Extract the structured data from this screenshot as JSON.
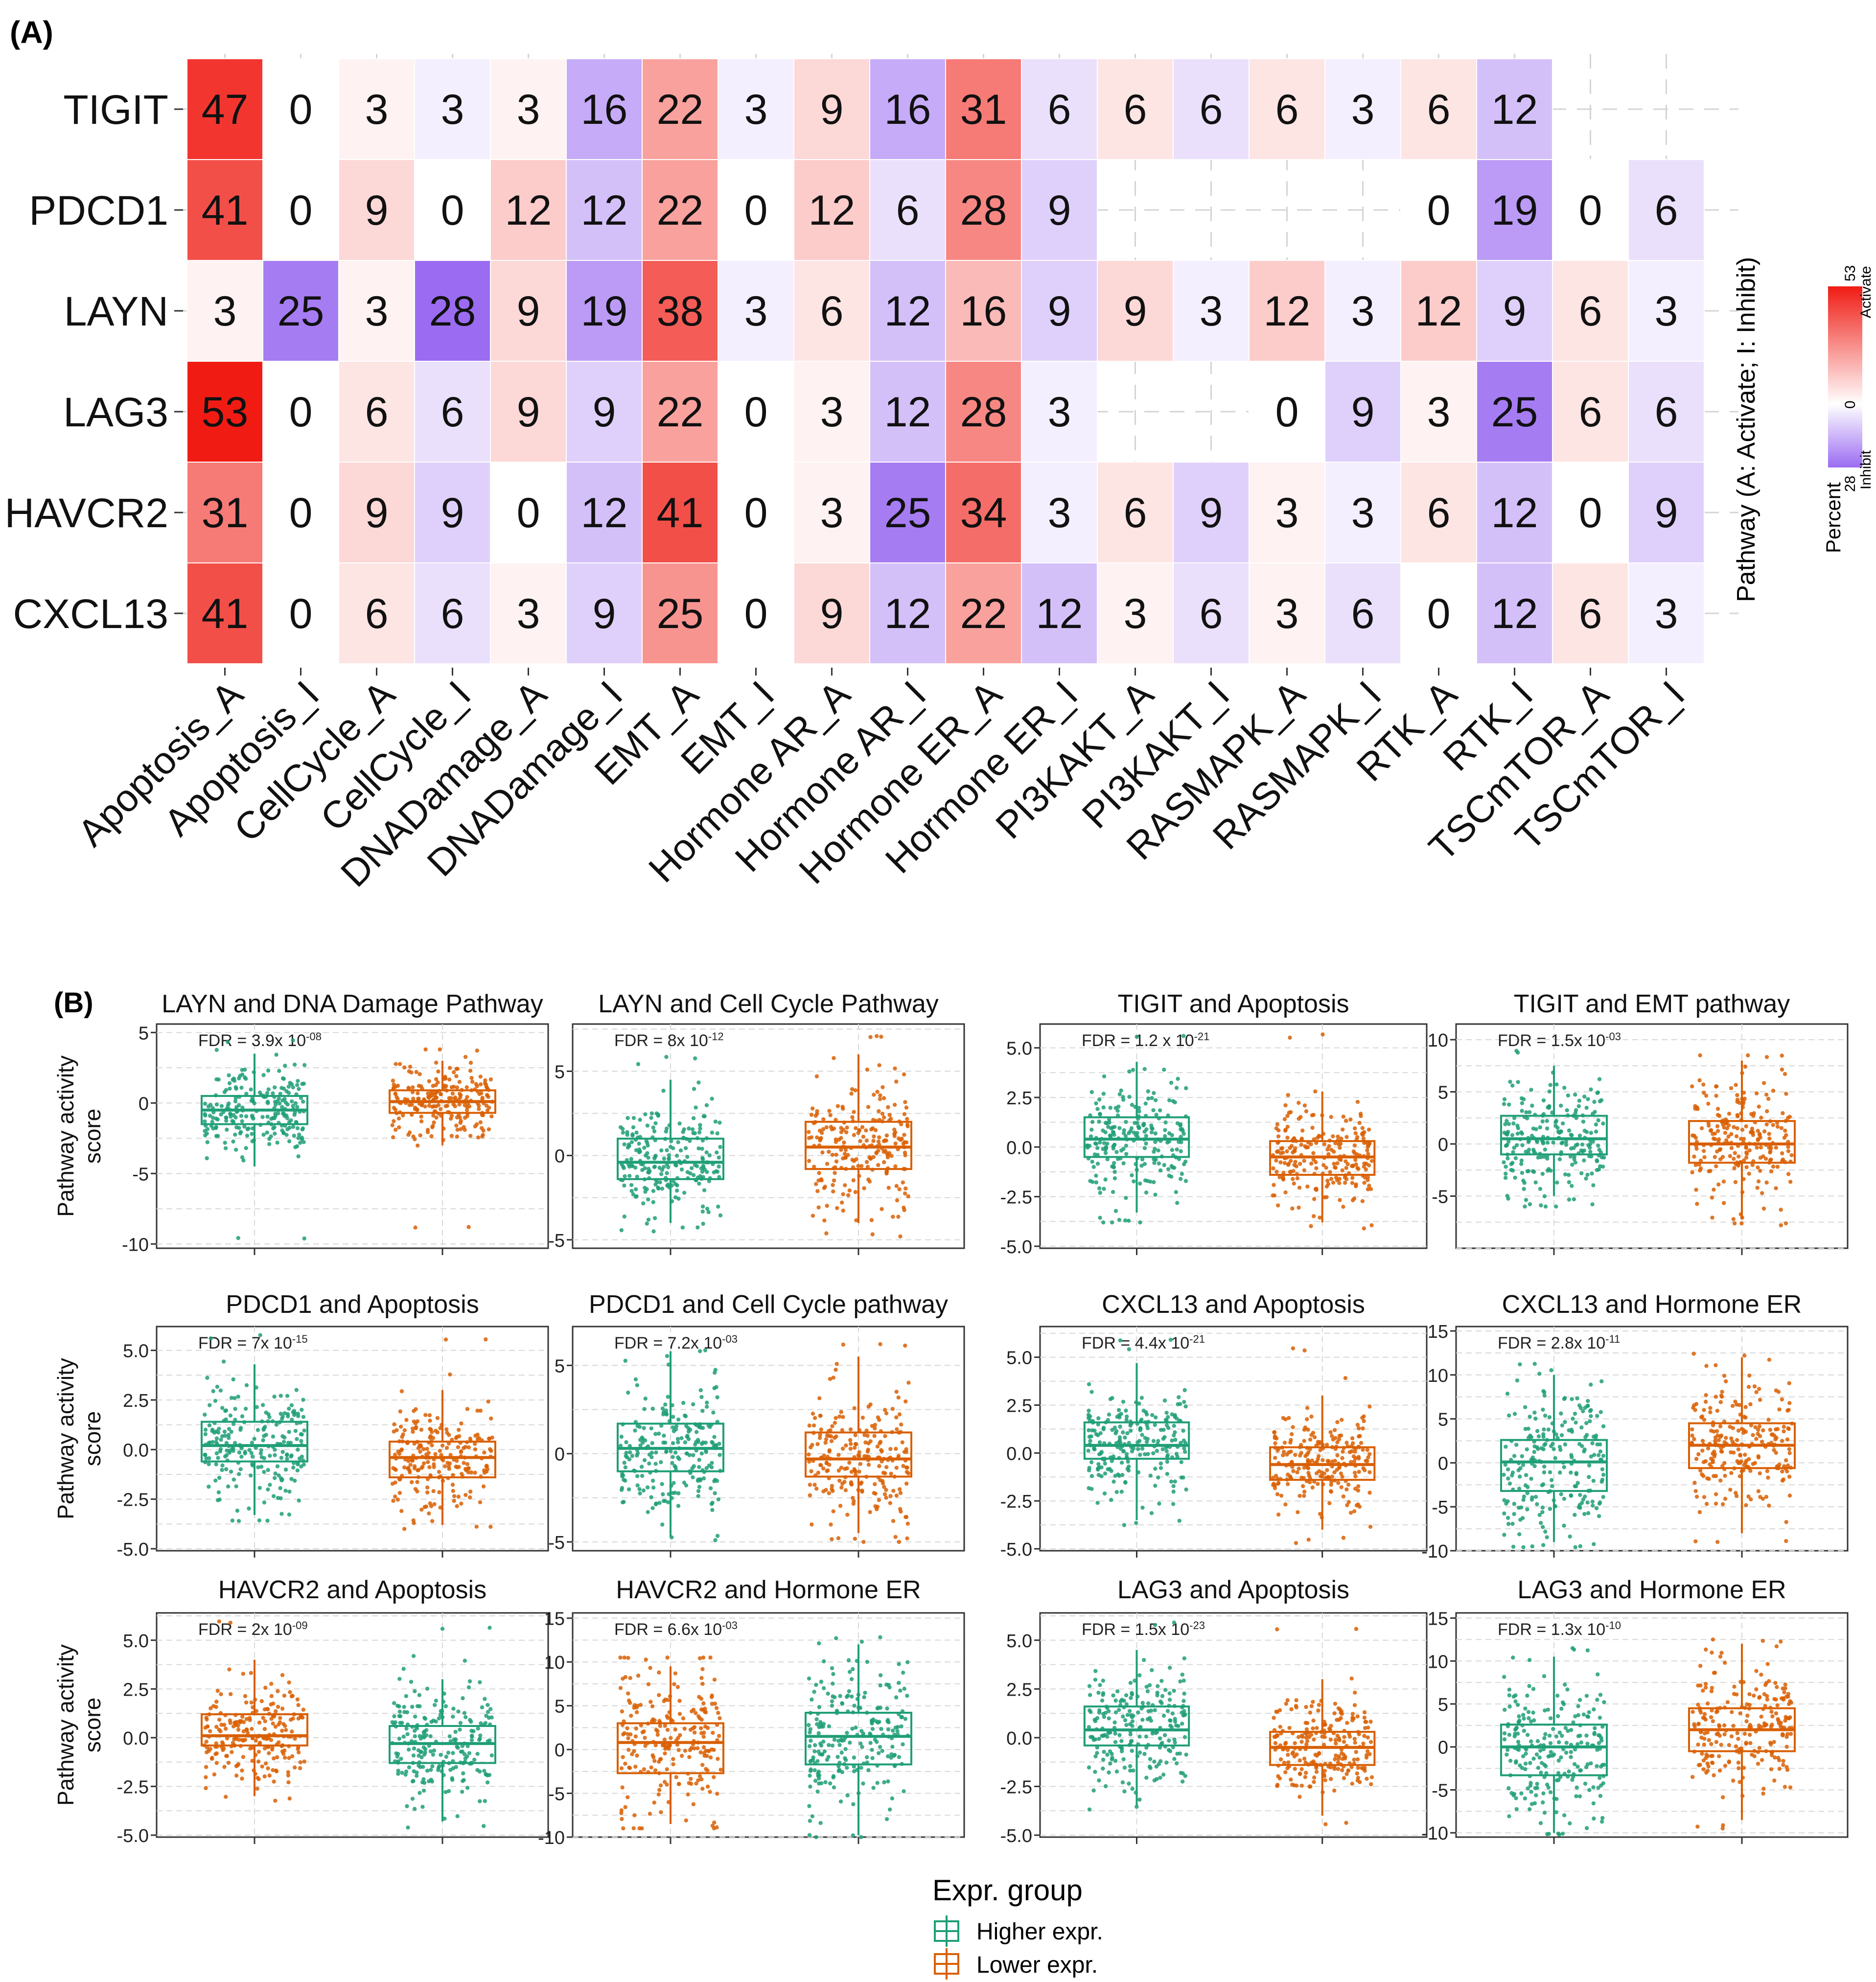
{
  "panels": {
    "a_label": "(A)",
    "b_label": "(B)"
  },
  "colors": {
    "activate": "#f01c14",
    "inhibit": "#9b6cf2",
    "neutral": "#ffffff",
    "higher": "#1f9e77",
    "lower": "#d95f02",
    "grid": "#dcdcdc"
  },
  "legend_heatmap": {
    "title": "Pathway (A: Activate; I: Inhibit)",
    "percent_label": "Percent",
    "max_label": "53",
    "max_caption": "Activate",
    "zero_label": "0",
    "min_label": "28",
    "min_caption": "Inhibit"
  },
  "legend_box": {
    "title": "Expr. group",
    "higher_label": "Higher expr.",
    "lower_label": "Lower expr."
  },
  "chart_data": [
    {
      "type": "heatmap",
      "title": "",
      "rows": [
        "TIGIT",
        "PDCD1",
        "LAYN",
        "LAG3",
        "HAVCR2",
        "CXCL13"
      ],
      "columns": [
        "Apoptosis_A",
        "Apoptosis_I",
        "CellCycle_A",
        "CellCycle_I",
        "DNADamage_A",
        "DNADamage_I",
        "EMT_A",
        "EMT_I",
        "Hormone AR_A",
        "Hormone AR_I",
        "Hormone ER_A",
        "Hormone ER_I",
        "PI3KAKT_A",
        "PI3KAKT_I",
        "RASMAPK_A",
        "RASMAPK_I",
        "RTK_A",
        "RTK_I",
        "TSCmTOR_A",
        "TSCmTOR_I"
      ],
      "values": [
        [
          47,
          0,
          3,
          3,
          3,
          16,
          22,
          3,
          9,
          16,
          31,
          6,
          6,
          6,
          6,
          3,
          6,
          12,
          null,
          null
        ],
        [
          41,
          0,
          9,
          0,
          12,
          12,
          22,
          0,
          12,
          6,
          28,
          9,
          null,
          null,
          null,
          null,
          0,
          19,
          0,
          6
        ],
        [
          3,
          25,
          3,
          28,
          9,
          19,
          38,
          3,
          6,
          12,
          16,
          9,
          9,
          3,
          12,
          3,
          12,
          9,
          6,
          3
        ],
        [
          53,
          0,
          6,
          6,
          9,
          9,
          22,
          0,
          3,
          12,
          28,
          3,
          null,
          null,
          0,
          9,
          3,
          25,
          6,
          6
        ],
        [
          31,
          0,
          9,
          9,
          0,
          12,
          41,
          0,
          3,
          25,
          34,
          3,
          6,
          9,
          3,
          3,
          6,
          12,
          0,
          9
        ],
        [
          41,
          0,
          6,
          6,
          3,
          9,
          25,
          0,
          9,
          12,
          22,
          12,
          3,
          6,
          3,
          6,
          0,
          12,
          6,
          3
        ]
      ],
      "activate_max": 53,
      "inhibit_max": 28
    },
    {
      "type": "box",
      "title": "LAYN and DNA Damage Pathway",
      "ylabel": "Pathway activity\nscore",
      "fdr_label": "FDR = 3.9x 10",
      "fdr_exp": "-08",
      "ylim": [
        -10.3,
        5.6
      ],
      "yticks": [
        5,
        0,
        -5,
        -10
      ],
      "ytick_labels": [
        "5",
        "0",
        "-5",
        "-10"
      ],
      "first": "higher",
      "groups": [
        {
          "name": "Higher expr.",
          "q1": -1.5,
          "median": -0.5,
          "q3": 0.5,
          "wlo": -4.5,
          "whi": 3.5,
          "min": -9.8,
          "max": 4.5
        },
        {
          "name": "Lower expr.",
          "q1": -0.7,
          "median": 0.1,
          "q3": 0.9,
          "wlo": -3.0,
          "whi": 3.0,
          "min": -9.0,
          "max": 3.8
        }
      ]
    },
    {
      "type": "box",
      "title": "LAYN and Cell Cycle Pathway",
      "ylabel": "",
      "fdr_label": "FDR = 8x 10",
      "fdr_exp": "-12",
      "ylim": [
        -5.5,
        7.8
      ],
      "yticks": [
        5,
        0,
        -5
      ],
      "ytick_labels": [
        "5",
        "0",
        "-5"
      ],
      "first": "higher",
      "groups": [
        {
          "name": "Higher expr.",
          "q1": -1.4,
          "median": -0.4,
          "q3": 1.0,
          "wlo": -4.0,
          "whi": 4.5,
          "min": -4.5,
          "max": 6.0
        },
        {
          "name": "Lower expr.",
          "q1": -0.8,
          "median": 0.5,
          "q3": 2.0,
          "wlo": -4.0,
          "whi": 6.0,
          "min": -4.8,
          "max": 7.2
        }
      ]
    },
    {
      "type": "box",
      "title": "TIGIT and Apoptosis",
      "ylabel": "",
      "fdr_label": "FDR = 1.2 x 10",
      "fdr_exp": "-21",
      "ylim": [
        -5.1,
        6.2
      ],
      "yticks": [
        5,
        2.5,
        0,
        -2.5,
        -5
      ],
      "ytick_labels": [
        "5.0",
        "2.5",
        "0.0",
        "-2.5",
        "-5.0"
      ],
      "first": "higher",
      "groups": [
        {
          "name": "Higher expr.",
          "q1": -0.5,
          "median": 0.4,
          "q3": 1.5,
          "wlo": -3.3,
          "whi": 4.3,
          "min": -3.8,
          "max": 5.8
        },
        {
          "name": "Lower expr.",
          "q1": -1.4,
          "median": -0.5,
          "q3": 0.3,
          "wlo": -3.8,
          "whi": 2.8,
          "min": -4.1,
          "max": 5.7
        }
      ]
    },
    {
      "type": "box",
      "title": "TIGIT and EMT pathway",
      "ylabel": "",
      "fdr_label": "FDR = 1.5x 10",
      "fdr_exp": "-03",
      "ylim": [
        -10,
        11.5
      ],
      "yticks": [
        10,
        5,
        0,
        -5
      ],
      "ytick_labels": [
        "10",
        "5",
        "0",
        "-5"
      ],
      "first": "higher",
      "groups": [
        {
          "name": "Higher expr.",
          "q1": -1.0,
          "median": 0.5,
          "q3": 2.7,
          "wlo": -5.0,
          "whi": 7.5,
          "min": -6.0,
          "max": 9.0
        },
        {
          "name": "Lower expr.",
          "q1": -1.8,
          "median": 0.0,
          "q3": 2.2,
          "wlo": -7.2,
          "whi": 8.0,
          "min": -7.8,
          "max": 8.5
        }
      ]
    },
    {
      "type": "box",
      "title": "PDCD1 and Apoptosis",
      "ylabel": "Pathway activity\nscore",
      "fdr_label": "FDR = 7x 10",
      "fdr_exp": "-15",
      "ylim": [
        -5.1,
        6.2
      ],
      "yticks": [
        5,
        2.5,
        0,
        -2.5,
        -5
      ],
      "ytick_labels": [
        "5.0",
        "2.5",
        "0.0",
        "-2.5",
        "-5.0"
      ],
      "first": "higher",
      "groups": [
        {
          "name": "Higher expr.",
          "q1": -0.6,
          "median": 0.2,
          "q3": 1.4,
          "wlo": -3.3,
          "whi": 4.3,
          "min": -3.6,
          "max": 5.8
        },
        {
          "name": "Lower expr.",
          "q1": -1.4,
          "median": -0.4,
          "q3": 0.4,
          "wlo": -3.8,
          "whi": 3.0,
          "min": -4.0,
          "max": 5.6
        }
      ]
    },
    {
      "type": "box",
      "title": "PDCD1 and Cell Cycle pathway",
      "ylabel": "",
      "fdr_label": "FDR = 7.2x 10",
      "fdr_exp": "-03",
      "ylim": [
        -5.5,
        7.2
      ],
      "yticks": [
        5,
        0,
        -5
      ],
      "ytick_labels": [
        "5",
        "0",
        "-5"
      ],
      "first": "higher",
      "groups": [
        {
          "name": "Higher expr.",
          "q1": -1.0,
          "median": 0.3,
          "q3": 1.7,
          "wlo": -4.7,
          "whi": 5.8,
          "min": -4.9,
          "max": 6.0
        },
        {
          "name": "Lower expr.",
          "q1": -1.3,
          "median": -0.3,
          "q3": 1.2,
          "wlo": -4.5,
          "whi": 5.5,
          "min": -5.0,
          "max": 6.2
        }
      ]
    },
    {
      "type": "box",
      "title": "CXCL13 and Apoptosis",
      "ylabel": "",
      "fdr_label": "FDR = 4.4x 10",
      "fdr_exp": "-21",
      "ylim": [
        -5.1,
        6.6
      ],
      "yticks": [
        5,
        2.5,
        0,
        -2.5,
        -5
      ],
      "ytick_labels": [
        "5.0",
        "2.5",
        "0.0",
        "-2.5",
        "-5.0"
      ],
      "first": "higher",
      "groups": [
        {
          "name": "Higher expr.",
          "q1": -0.3,
          "median": 0.4,
          "q3": 1.6,
          "wlo": -3.5,
          "whi": 4.7,
          "min": -3.8,
          "max": 6.0
        },
        {
          "name": "Lower expr.",
          "q1": -1.4,
          "median": -0.6,
          "q3": 0.3,
          "wlo": -4.0,
          "whi": 3.0,
          "min": -4.7,
          "max": 5.5
        }
      ]
    },
    {
      "type": "box",
      "title": "CXCL13 and Hormone ER",
      "ylabel": "",
      "fdr_label": "FDR = 2.8x 10",
      "fdr_exp": "-11",
      "ylim": [
        -10,
        15.5
      ],
      "yticks": [
        15,
        10,
        5,
        0,
        -5,
        -10
      ],
      "ytick_labels": [
        "15",
        "10",
        "5",
        "0",
        "-5",
        "-10"
      ],
      "first": "higher",
      "groups": [
        {
          "name": "Higher expr.",
          "q1": -3.2,
          "median": 0.1,
          "q3": 2.6,
          "wlo": -9.0,
          "whi": 10.0,
          "min": -9.6,
          "max": 11.5
        },
        {
          "name": "Lower expr.",
          "q1": -0.6,
          "median": 2.0,
          "q3": 4.5,
          "wlo": -8.0,
          "whi": 12.0,
          "min": -9.0,
          "max": 12.5
        }
      ]
    },
    {
      "type": "box",
      "title": "HAVCR2 and Apoptosis",
      "ylabel": "Pathway activity\nscore",
      "fdr_label": "FDR = 2x 10",
      "fdr_exp": "-09",
      "ylim": [
        -5.1,
        6.4
      ],
      "yticks": [
        5,
        2.5,
        0,
        -2.5,
        -5
      ],
      "ytick_labels": [
        "5.0",
        "2.5",
        "0.0",
        "-2.5",
        "-5.0"
      ],
      "first": "lower",
      "groups": [
        {
          "name": "Lower expr.",
          "q1": -0.4,
          "median": 0.1,
          "q3": 1.2,
          "wlo": -3.0,
          "whi": 4.0,
          "min": -3.3,
          "max": 6.0
        },
        {
          "name": "Higher expr.",
          "q1": -1.3,
          "median": -0.3,
          "q3": 0.6,
          "wlo": -4.3,
          "whi": 3.0,
          "min": -4.8,
          "max": 5.8
        }
      ]
    },
    {
      "type": "box",
      "title": "HAVCR2 and Hormone ER",
      "ylabel": "",
      "fdr_label": "FDR = 6.6x 10",
      "fdr_exp": "-03",
      "ylim": [
        -10,
        15.6
      ],
      "yticks": [
        15,
        10,
        5,
        0,
        -5,
        -10
      ],
      "ytick_labels": [
        "15",
        "10",
        "5",
        "0",
        "-5",
        "-10"
      ],
      "first": "lower",
      "groups": [
        {
          "name": "Lower expr.",
          "q1": -2.7,
          "median": 0.8,
          "q3": 3.0,
          "wlo": -8.5,
          "whi": 9.5,
          "min": -9.0,
          "max": 10.5
        },
        {
          "name": "Higher expr.",
          "q1": -1.7,
          "median": 1.5,
          "q3": 4.2,
          "wlo": -9.8,
          "whi": 12.0,
          "min": -10.0,
          "max": 13.0
        }
      ]
    },
    {
      "type": "box",
      "title": "LAG3 and Apoptosis",
      "ylabel": "",
      "fdr_label": "FDR = 1.5x 10",
      "fdr_exp": "-23",
      "ylim": [
        -5.1,
        6.4
      ],
      "yticks": [
        5,
        2.5,
        0,
        -2.5,
        -5
      ],
      "ytick_labels": [
        "5.0",
        "2.5",
        "0.0",
        "-2.5",
        "-5.0"
      ],
      "first": "higher",
      "groups": [
        {
          "name": "Higher expr.",
          "q1": -0.4,
          "median": 0.4,
          "q3": 1.6,
          "wlo": -3.5,
          "whi": 4.5,
          "min": -3.8,
          "max": 6.0
        },
        {
          "name": "Lower expr.",
          "q1": -1.4,
          "median": -0.5,
          "q3": 0.3,
          "wlo": -4.0,
          "whi": 3.0,
          "min": -4.5,
          "max": 5.8
        }
      ]
    },
    {
      "type": "box",
      "title": "LAG3 and Hormone ER",
      "ylabel": "",
      "fdr_label": "FDR = 1.3x 10",
      "fdr_exp": "-10",
      "ylim": [
        -10.5,
        15.6
      ],
      "yticks": [
        15,
        10,
        5,
        0,
        -5,
        -10
      ],
      "ytick_labels": [
        "15",
        "10",
        "5",
        "0",
        "-5",
        "-10"
      ],
      "first": "higher",
      "groups": [
        {
          "name": "Higher expr.",
          "q1": -3.3,
          "median": 0.0,
          "q3": 2.6,
          "wlo": -10.0,
          "whi": 10.5,
          "min": -10.2,
          "max": 11.5
        },
        {
          "name": "Lower expr.",
          "q1": -0.5,
          "median": 2.0,
          "q3": 4.5,
          "wlo": -8.5,
          "whi": 12.0,
          "min": -9.5,
          "max": 12.5
        }
      ]
    }
  ]
}
